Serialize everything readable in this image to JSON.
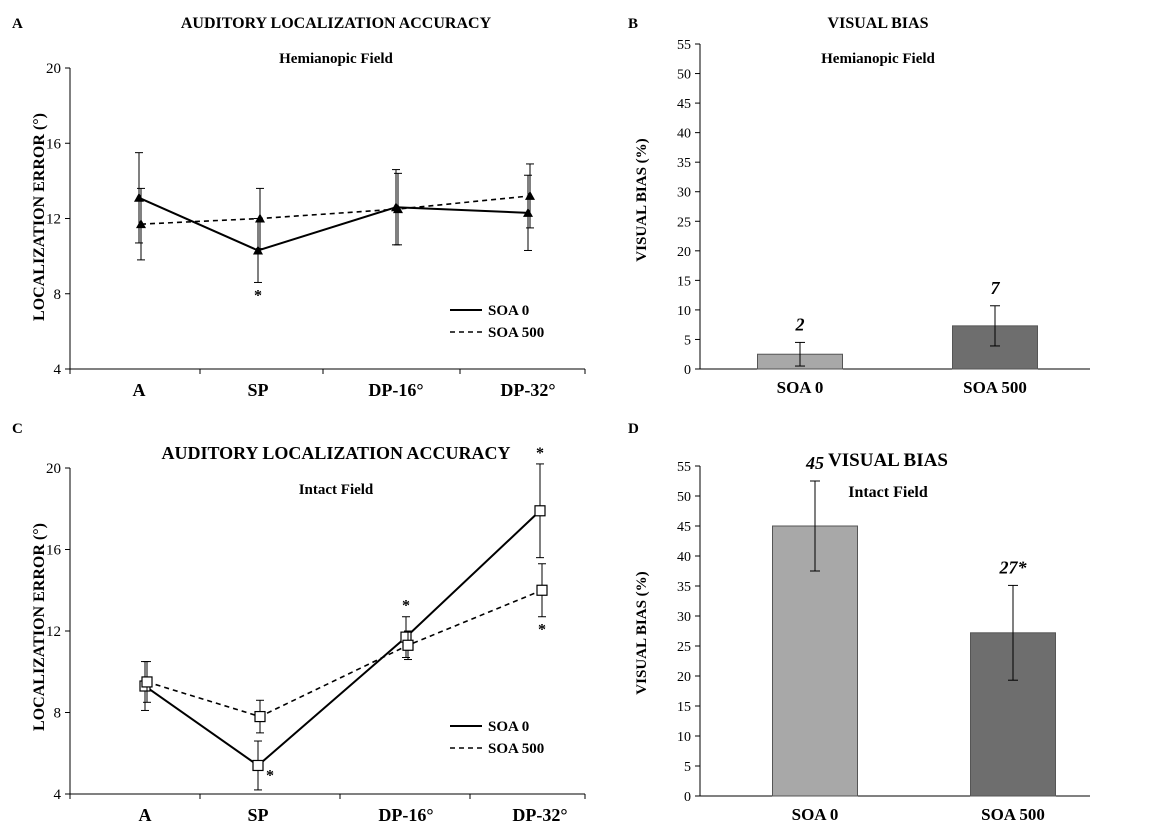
{
  "panels": [
    {
      "letter": "A",
      "title": "AUDITORY LOCALIZATION ACCURACY",
      "subtitle": "Hemianopic Field",
      "ylabel": "LOCALIZATION ERROR (°)"
    },
    {
      "letter": "B",
      "title": "VISUAL BIAS",
      "subtitle": "Hemianopic Field",
      "ylabel": "VISUAL BIAS (%)"
    },
    {
      "letter": "C",
      "title": "AUDITORY LOCALIZATION ACCURACY",
      "subtitle": "Intact Field",
      "ylabel": "LOCALIZATION ERROR (°)"
    },
    {
      "letter": "D",
      "title": "VISUAL BIAS",
      "subtitle": "Intact Field",
      "ylabel": "VISUAL BIAS (%)"
    }
  ],
  "chart_data": [
    {
      "panel": "A",
      "type": "line",
      "title": "AUDITORY LOCALIZATION ACCURACY",
      "subtitle": "Hemianopic Field",
      "ylabel": "LOCALIZATION ERROR (°)",
      "categories": [
        "A",
        "SP",
        "DP-16°",
        "DP-32°"
      ],
      "ylim": [
        4,
        20
      ],
      "yticks": [
        4,
        8,
        12,
        16,
        20
      ],
      "legend": "bottom-right",
      "marker": "filled-triangle",
      "series": [
        {
          "name": "SOA 0",
          "style": "solid",
          "values": [
            13.1,
            10.3,
            12.6,
            12.3
          ],
          "errors": [
            2.4,
            1.7,
            2.0,
            2.0
          ],
          "stars_below": [
            false,
            true,
            false,
            false
          ],
          "stars_above": [
            false,
            false,
            false,
            false
          ]
        },
        {
          "name": "SOA 500",
          "style": "dashed",
          "values": [
            11.7,
            12.0,
            12.5,
            13.2
          ],
          "errors": [
            1.9,
            1.6,
            1.9,
            1.7
          ],
          "stars_below": [
            false,
            false,
            false,
            false
          ],
          "stars_above": [
            false,
            false,
            false,
            false
          ]
        }
      ]
    },
    {
      "panel": "B",
      "type": "bar",
      "title": "VISUAL BIAS",
      "subtitle": "Hemianopic Field",
      "ylabel": "VISUAL BIAS (%)",
      "categories": [
        "SOA 0",
        "SOA 500"
      ],
      "values": [
        2.5,
        7.3
      ],
      "errors": [
        2.0,
        3.4
      ],
      "data_labels": [
        "2",
        "7"
      ],
      "ylim": [
        0,
        55
      ],
      "yticks": [
        0,
        5,
        10,
        15,
        20,
        25,
        30,
        35,
        40,
        45,
        50,
        55
      ],
      "bar_colors": [
        "#a8a8a8",
        "#6e6e6e"
      ]
    },
    {
      "panel": "C",
      "type": "line",
      "title": "AUDITORY LOCALIZATION ACCURACY",
      "subtitle": "Intact Field",
      "ylabel": "LOCALIZATION ERROR (°)",
      "categories": [
        "A",
        "SP",
        "DP-16°",
        "DP-32°"
      ],
      "ylim": [
        4,
        20
      ],
      "yticks": [
        4,
        8,
        12,
        16,
        20
      ],
      "legend": "bottom-right",
      "marker": "open-square",
      "series": [
        {
          "name": "SOA 0",
          "style": "solid",
          "values": [
            9.3,
            5.4,
            11.7,
            17.9
          ],
          "errors": [
            1.2,
            1.2,
            1.0,
            2.3
          ],
          "stars_below": [
            false,
            true,
            false,
            false
          ],
          "stars_above": [
            false,
            false,
            true,
            true
          ]
        },
        {
          "name": "SOA 500",
          "style": "dashed",
          "values": [
            9.5,
            7.8,
            11.3,
            14.0
          ],
          "errors": [
            1.0,
            0.8,
            0.7,
            1.3
          ],
          "stars_below": [
            false,
            false,
            false,
            true
          ],
          "stars_above": [
            false,
            false,
            false,
            false
          ]
        }
      ]
    },
    {
      "panel": "D",
      "type": "bar",
      "title": "VISUAL BIAS",
      "subtitle": "Intact Field",
      "ylabel": "VISUAL BIAS (%)",
      "categories": [
        "SOA 0",
        "SOA 500"
      ],
      "values": [
        45,
        27.2
      ],
      "errors": [
        7.5,
        7.9
      ],
      "data_labels": [
        "45",
        "27*"
      ],
      "ylim": [
        0,
        55
      ],
      "yticks": [
        0,
        5,
        10,
        15,
        20,
        25,
        30,
        35,
        40,
        45,
        50,
        55
      ],
      "bar_colors": [
        "#a8a8a8",
        "#6e6e6e"
      ]
    }
  ]
}
